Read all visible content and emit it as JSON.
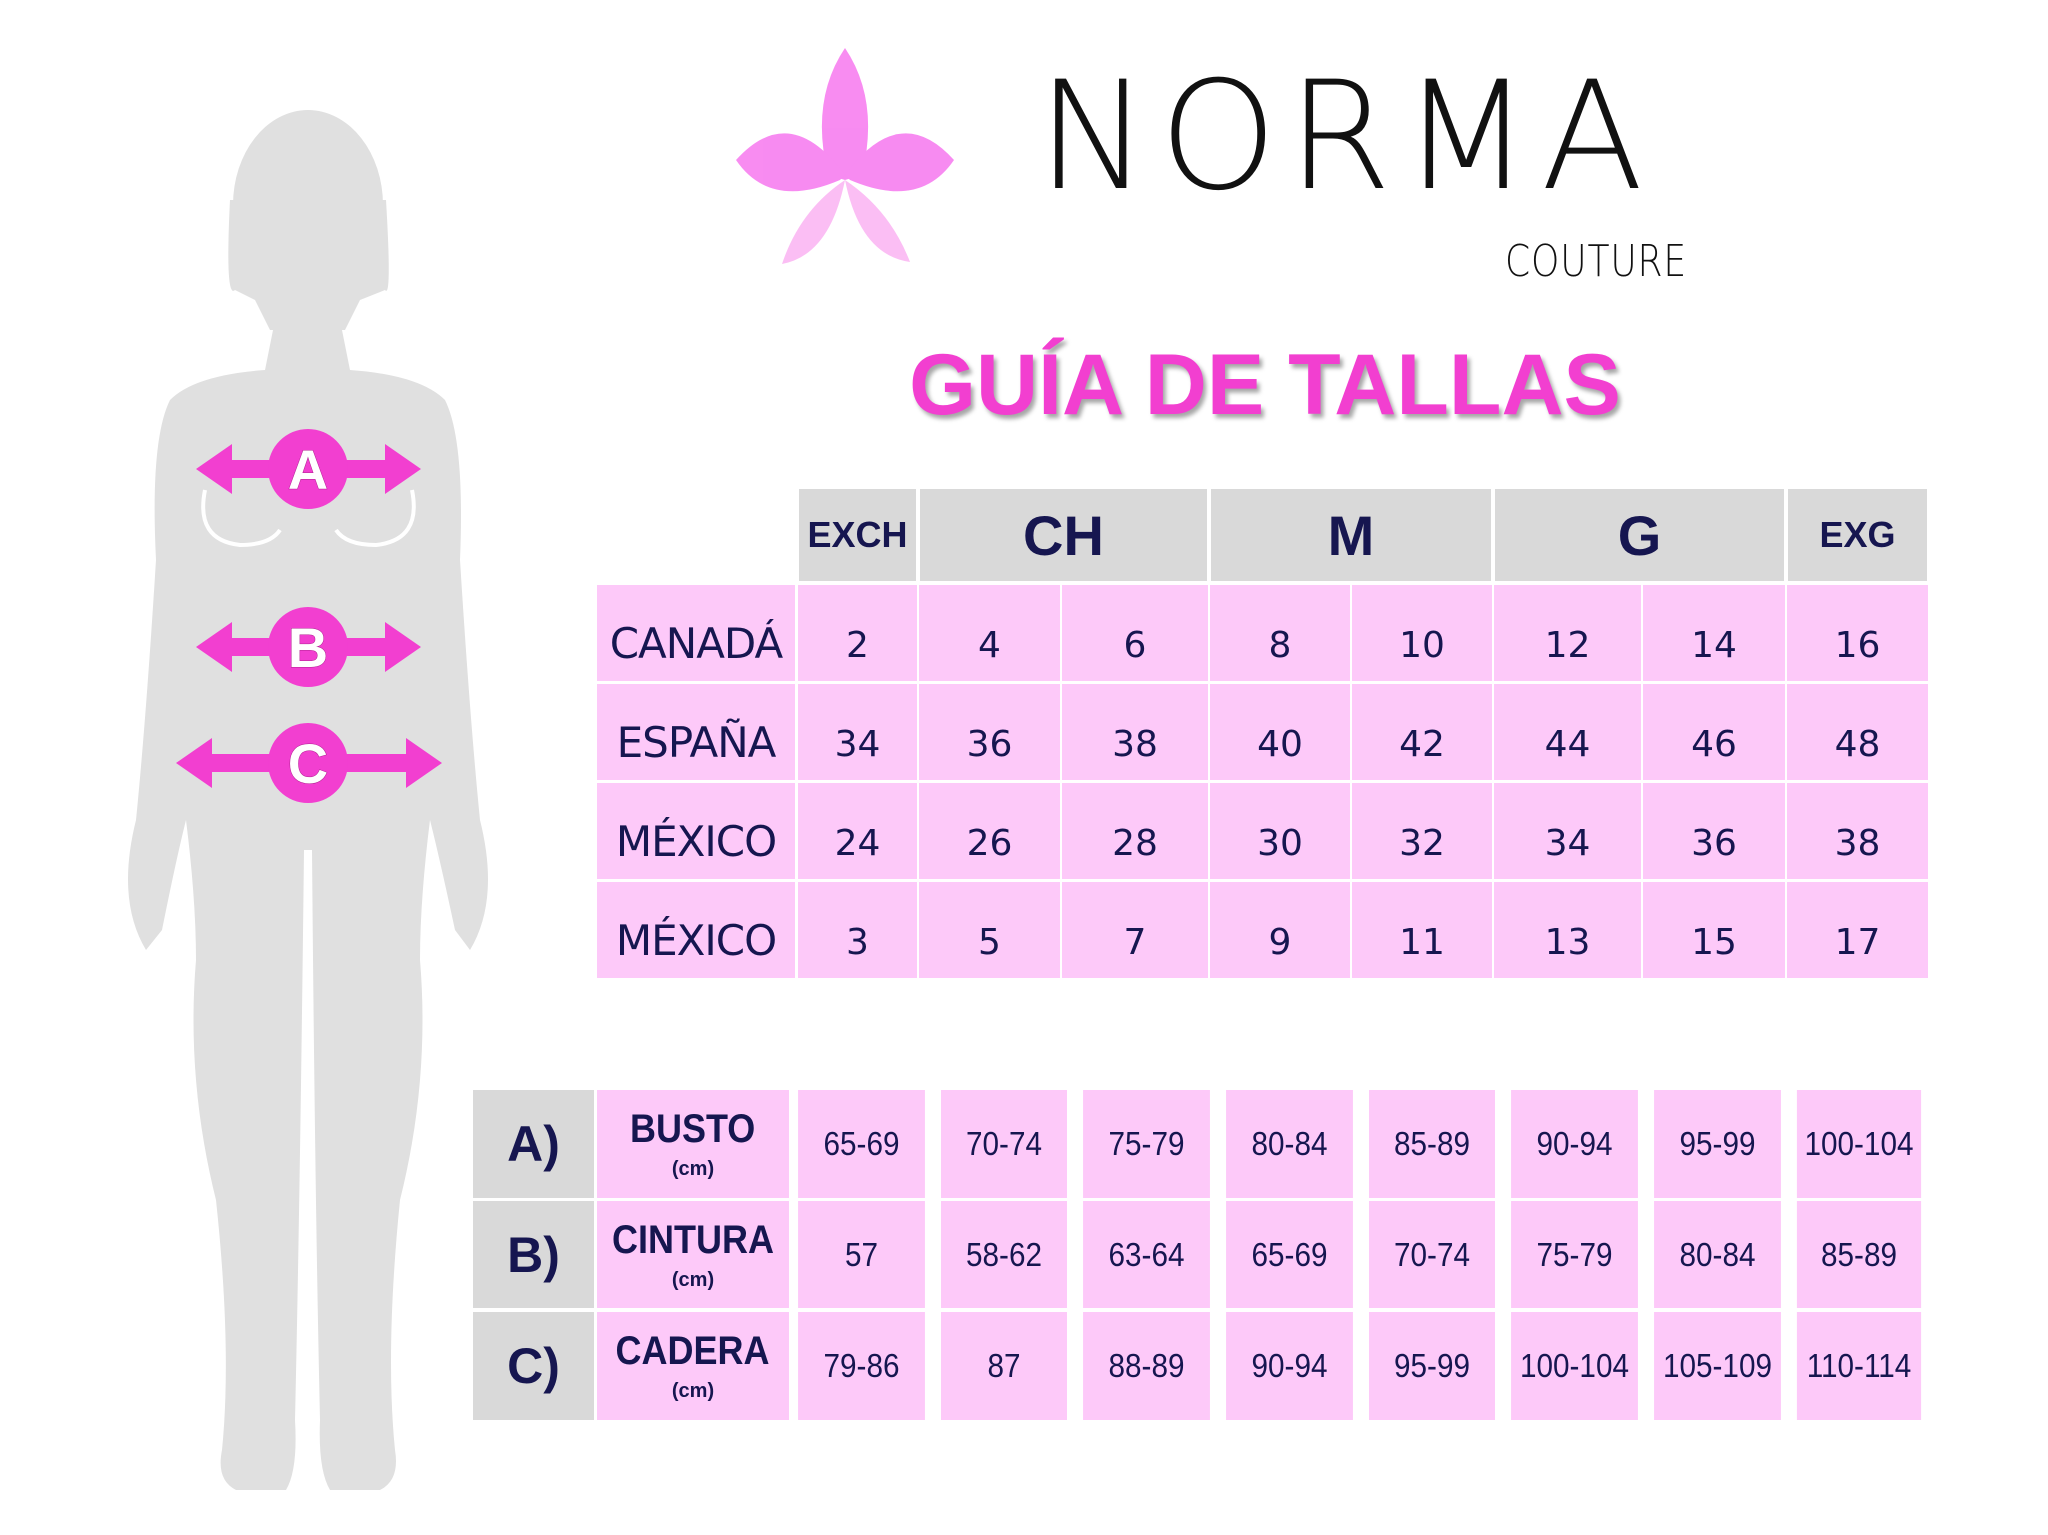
{
  "brand": {
    "name": "NORMA",
    "subtitle": "COUTURE",
    "flower_colors": [
      "#f77ff0",
      "#fbb8f3"
    ]
  },
  "title": "GUÍA DE TALLAS",
  "colors": {
    "accent": "#f23fd0",
    "cell_pink": "#fdc9f9",
    "header_gray": "#d9d9d9",
    "text_navy": "#161650",
    "silhouette": "#e0e0e0"
  },
  "figure": {
    "markers": [
      "A",
      "B",
      "C"
    ]
  },
  "size_table": {
    "groups": [
      {
        "label": "EXCH",
        "span": 1
      },
      {
        "label": "CH",
        "span": 2
      },
      {
        "label": "M",
        "span": 2
      },
      {
        "label": "G",
        "span": 2
      },
      {
        "label": "EXG",
        "span": 1
      }
    ],
    "rows": [
      {
        "label": "CANADÁ",
        "values": [
          "2",
          "4",
          "6",
          "8",
          "10",
          "12",
          "14",
          "16"
        ]
      },
      {
        "label": "ESPAÑA",
        "values": [
          "34",
          "36",
          "38",
          "40",
          "42",
          "44",
          "46",
          "48"
        ]
      },
      {
        "label": "MÉXICO",
        "values": [
          "24",
          "26",
          "28",
          "30",
          "32",
          "34",
          "36",
          "38"
        ]
      },
      {
        "label": "MÉXICO",
        "values": [
          "3",
          "5",
          "7",
          "9",
          "11",
          "13",
          "15",
          "17"
        ]
      }
    ]
  },
  "measure_table": {
    "rows": [
      {
        "letter": "A)",
        "label": "BUSTO",
        "unit": "(cm)",
        "values": [
          "65-69",
          "70-74",
          "75-79",
          "80-84",
          "85-89",
          "90-94",
          "95-99",
          "100-104"
        ]
      },
      {
        "letter": "B)",
        "label": "CINTURA",
        "unit": "(cm)",
        "values": [
          "57",
          "58-62",
          "63-64",
          "65-69",
          "70-74",
          "75-79",
          "80-84",
          "85-89"
        ]
      },
      {
        "letter": "C)",
        "label": "CADERA",
        "unit": "(cm)",
        "values": [
          "79-86",
          "87",
          "88-89",
          "90-94",
          "95-99",
          "100-104",
          "105-109",
          "110-114"
        ]
      }
    ]
  }
}
